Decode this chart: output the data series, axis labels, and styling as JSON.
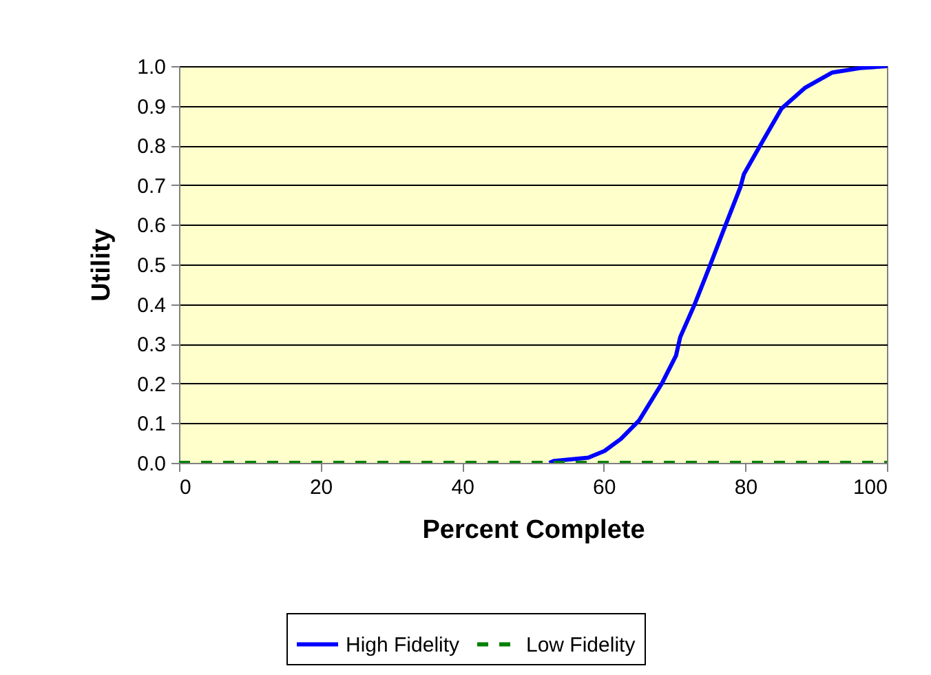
{
  "chart_data": {
    "type": "line",
    "xlabel": "Percent Complete",
    "ylabel": "Utility",
    "xlim": [
      0,
      100
    ],
    "xticks": [
      0,
      20,
      40,
      60,
      80,
      100
    ],
    "ylim": [
      0,
      1
    ],
    "yticks": [
      {
        "value": 0,
        "label": "0.0"
      },
      {
        "value": 0.1,
        "label": "0.1"
      },
      {
        "value": 0.2,
        "label": "0.2"
      },
      {
        "value": 0.3,
        "label": "0.3"
      },
      {
        "value": 0.4,
        "label": "0.4"
      },
      {
        "value": 0.5,
        "label": "0.5"
      },
      {
        "value": 0.6,
        "label": "0.6"
      },
      {
        "value": 0.7,
        "label": "0.7"
      },
      {
        "value": 0.8,
        "label": "0.8"
      },
      {
        "value": 0.9,
        "label": "0.9"
      },
      {
        "value": 1,
        "label": "1.0"
      }
    ],
    "grid": "y",
    "legend": "bottom",
    "marker": "none",
    "series": [
      {
        "name": "High Fidelity",
        "color": "#0000ff",
        "line_style": "solid",
        "x": [
          52.3,
          53,
          57.8,
          60.1,
          62.4,
          65,
          68.2,
          70.2,
          70.8,
          72.8,
          75,
          77,
          79.3,
          79.8,
          81.9,
          85.1,
          88.4,
          92.3,
          96.2,
          100
        ],
        "values": [
          0,
          0.005,
          0.013,
          0.03,
          0.06,
          0.107,
          0.2,
          0.27,
          0.317,
          0.398,
          0.497,
          0.59,
          0.695,
          0.728,
          0.794,
          0.893,
          0.945,
          0.984,
          0.995,
          1
        ]
      },
      {
        "name": "Low Fidelity",
        "color": "#008000",
        "line_style": "dashed",
        "x": [
          0,
          100
        ],
        "values": [
          0,
          0
        ]
      }
    ]
  }
}
